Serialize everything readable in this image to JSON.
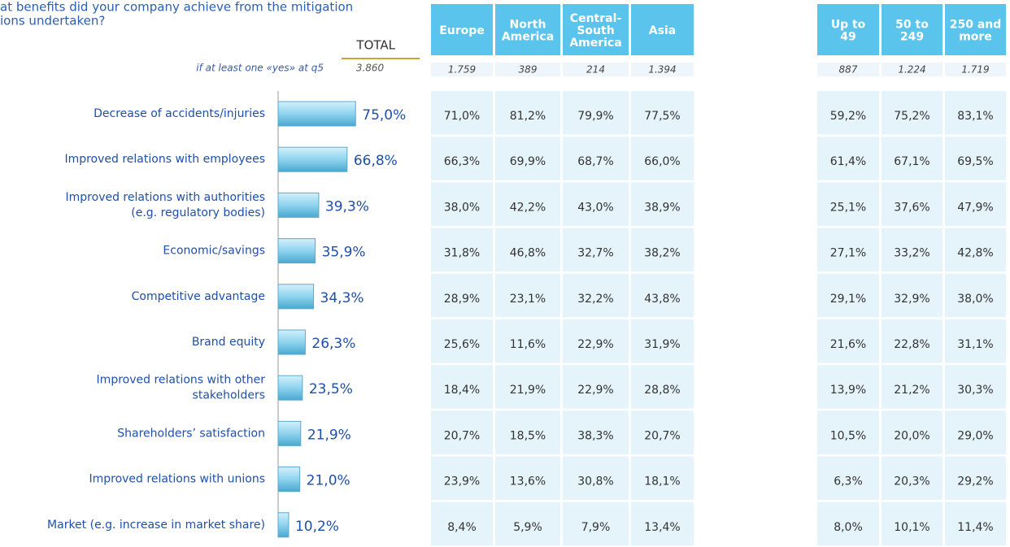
{
  "chart_data": {
    "type": "hbar",
    "title_lines": [
      "at benefits did your company achieve from the mitigation",
      "ions undertaken?"
    ],
    "total_label": "TOTAL",
    "base_label": "if at least one «yes» at q5",
    "base_value": "3.860",
    "categories": [
      "Decrease of accidents/injuries",
      "Improved relations with employees",
      "Improved relations with authorities\n(e.g. regulatory bodies)",
      "Economic/savings",
      "Competitive advantage",
      "Brand equity",
      "Improved relations with other\nstakeholders",
      "Shareholders’ satisfaction",
      "Improved relations with unions",
      "Market (e.g. increase in market share)"
    ],
    "values": [
      75.0,
      66.8,
      39.3,
      35.9,
      34.3,
      26.3,
      23.5,
      21.9,
      21.0,
      10.2
    ],
    "value_labels": [
      "75,0%",
      "66,8%",
      "39,3%",
      "35,9%",
      "34,3%",
      "26,3%",
      "23,5%",
      "21,9%",
      "21,0%",
      "10,2%"
    ],
    "color": "#7fcbe8",
    "xlim": [
      0,
      100
    ]
  },
  "tables": [
    {
      "headers": [
        "Europe",
        "North\nAmerica",
        "Central-\nSouth\nAmerica",
        "Asia"
      ],
      "base": [
        "1.759",
        "389",
        "214",
        "1.394"
      ],
      "rows": [
        [
          "71,0%",
          "81,2%",
          "79,9%",
          "77,5%"
        ],
        [
          "66,3%",
          "69,9%",
          "68,7%",
          "66,0%"
        ],
        [
          "38,0%",
          "42,2%",
          "43,0%",
          "38,9%"
        ],
        [
          "31,8%",
          "46,8%",
          "32,7%",
          "38,2%"
        ],
        [
          "28,9%",
          "23,1%",
          "32,2%",
          "43,8%"
        ],
        [
          "25,6%",
          "11,6%",
          "22,9%",
          "31,9%"
        ],
        [
          "18,4%",
          "21,9%",
          "22,9%",
          "28,8%"
        ],
        [
          "20,7%",
          "18,5%",
          "38,3%",
          "20,7%"
        ],
        [
          "23,9%",
          "13,6%",
          "30,8%",
          "18,1%"
        ],
        [
          "8,4%",
          "5,9%",
          "7,9%",
          "13,4%"
        ]
      ]
    },
    {
      "headers": [
        "Up to\n49",
        "50 to\n249",
        "250 and\nmore"
      ],
      "base": [
        "887",
        "1.224",
        "1.719"
      ],
      "rows": [
        [
          "59,2%",
          "75,2%",
          "83,1%"
        ],
        [
          "61,4%",
          "67,1%",
          "69,5%"
        ],
        [
          "25,1%",
          "37,6%",
          "47,9%"
        ],
        [
          "27,1%",
          "33,2%",
          "42,8%"
        ],
        [
          "29,1%",
          "32,9%",
          "38,0%"
        ],
        [
          "21,6%",
          "22,8%",
          "31,1%"
        ],
        [
          "13,9%",
          "21,2%",
          "30,3%"
        ],
        [
          "10,5%",
          "20,0%",
          "29,0%"
        ],
        [
          "6,3%",
          "20,3%",
          "29,2%"
        ],
        [
          "8,0%",
          "10,1%",
          "11,4%"
        ]
      ]
    }
  ]
}
